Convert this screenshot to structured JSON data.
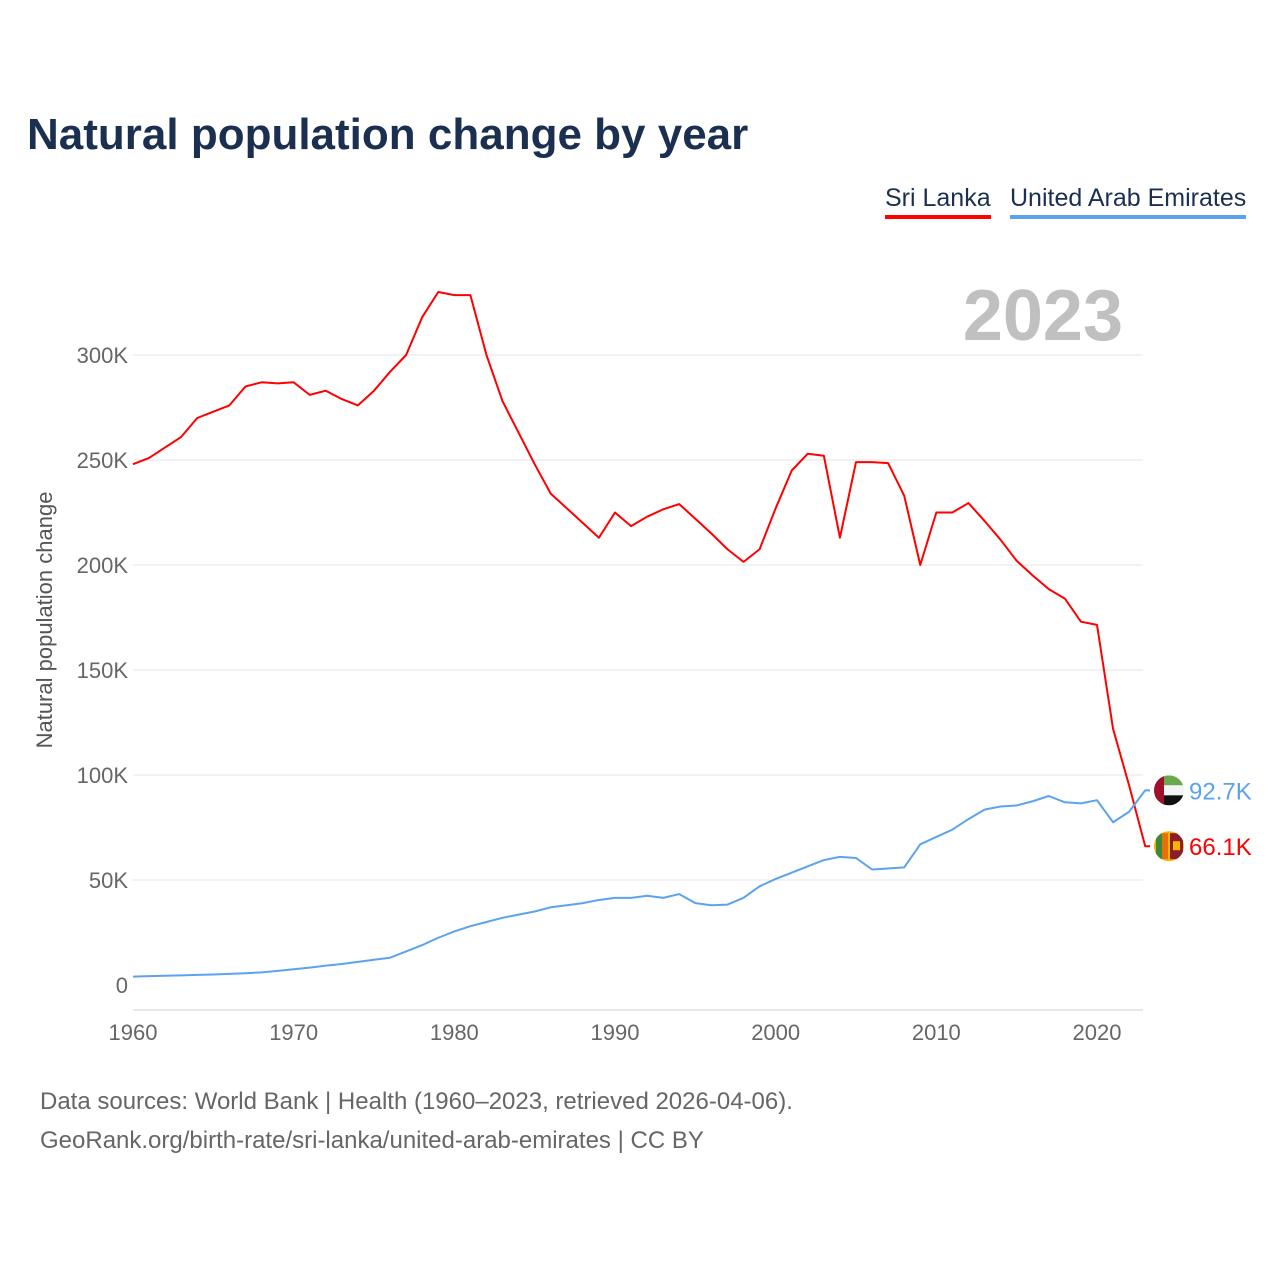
{
  "title": "Natural population change by year",
  "legend": [
    {
      "label": "Sri Lanka",
      "color": "#ff0000"
    },
    {
      "label": "United Arab Emirates",
      "color": "#5ba3ee"
    }
  ],
  "year_watermark": "2023",
  "footer": {
    "line1": "Data sources: World Bank | Health (1960–2023, retrieved 2026-04-06).",
    "line2": "GeoRank.org/birth-rate/sri-lanka/united-arab-emirates | CC BY"
  },
  "chart_data": {
    "type": "line",
    "title": "Natural population change by year",
    "xlabel": "",
    "ylabel": "Natural population change",
    "xlim": [
      1960,
      2023
    ],
    "ylim": [
      0,
      330000
    ],
    "xticks": [
      1960,
      1970,
      1980,
      1990,
      2000,
      2010,
      2020
    ],
    "xtick_labels": [
      "1960",
      "1970",
      "1980",
      "1990",
      "2000",
      "2010",
      "2020"
    ],
    "yticks": [
      0,
      50000,
      100000,
      150000,
      200000,
      250000,
      300000
    ],
    "ytick_labels": [
      "0",
      "50K",
      "100K",
      "150K",
      "200K",
      "250K",
      "300K"
    ],
    "grid": true,
    "legend_position": "top-right",
    "x_start": 1960,
    "series": [
      {
        "name": "Sri Lanka",
        "color": "#ff0000",
        "end_label": "66.1K",
        "flag": "sri-lanka",
        "values": [
          248,
          251,
          256,
          261,
          270,
          273,
          276,
          285,
          287,
          286.5,
          287,
          281,
          283,
          279,
          276,
          283,
          292,
          300,
          318,
          330,
          328.5,
          328.5,
          300,
          278,
          263,
          248,
          234,
          227,
          220,
          213,
          225,
          218.5,
          223,
          226.5,
          229,
          222,
          215,
          207.5,
          201.5,
          207.5,
          227,
          245,
          253,
          252,
          213,
          249,
          249,
          248.5,
          233,
          200,
          225,
          225,
          229.5,
          221,
          212,
          202,
          195,
          188.5,
          184,
          173,
          171.5,
          122,
          95,
          66.1
        ]
      },
      {
        "name": "United Arab Emirates",
        "color": "#5ba3ee",
        "end_label": "92.7K",
        "flag": "uae",
        "values": [
          4,
          4.2,
          4.4,
          4.6,
          4.8,
          5,
          5.3,
          5.6,
          6,
          6.7,
          7.5,
          8.3,
          9.2,
          10,
          11,
          12,
          13,
          16,
          19,
          22.5,
          25.5,
          28,
          30,
          32,
          33.5,
          35,
          37,
          38,
          39,
          40.5,
          41.5,
          41.5,
          42.5,
          41.5,
          43.3,
          39,
          38,
          38.3,
          41.5,
          47,
          50.5,
          53.5,
          56.5,
          59.5,
          61,
          60.5,
          55,
          55.5,
          56,
          67,
          70.5,
          74,
          79,
          83.5,
          85,
          85.5,
          87.5,
          90,
          87,
          86.5,
          88,
          77.5,
          82.5,
          92.7
        ]
      }
    ],
    "value_unit": "thousands"
  }
}
